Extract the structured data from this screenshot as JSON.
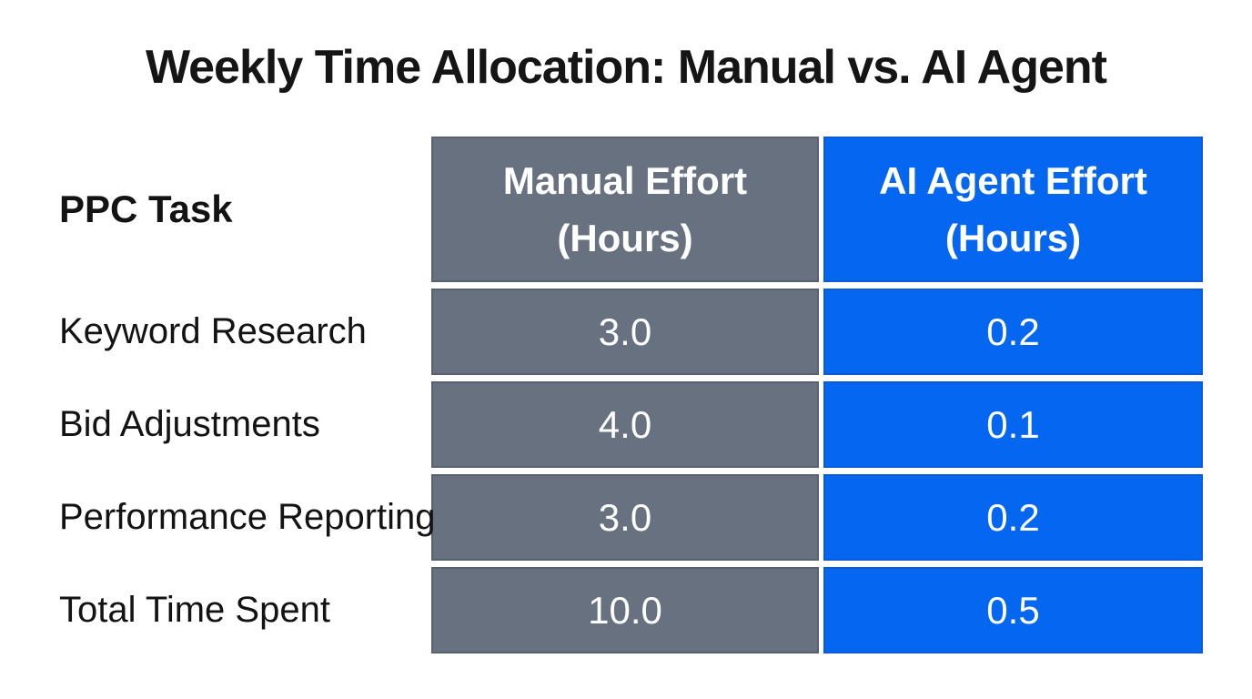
{
  "title": "Weekly Time Allocation: Manual vs. AI Agent",
  "colors": {
    "manual_column": "#68717f",
    "manual_border": "#59616d",
    "ai_column": "#0566f0",
    "ai_border": "#0b5bd6",
    "header_text": "#ffffff",
    "title_text": "#151515"
  },
  "table": {
    "task_header": "PPC Task",
    "columns": [
      {
        "label_line1": "Manual Effort",
        "label_line2": "(Hours)"
      },
      {
        "label_line1": "AI Agent Effort",
        "label_line2": "(Hours)"
      }
    ],
    "rows": [
      {
        "task": "Keyword Research",
        "manual": "3.0",
        "ai": "0.2"
      },
      {
        "task": "Bid Adjustments",
        "manual": "4.0",
        "ai": "0.1"
      },
      {
        "task": "Performance Reporting",
        "manual": "3.0",
        "ai": "0.2"
      },
      {
        "task": "Total Time Spent",
        "manual": "10.0",
        "ai": "0.5"
      }
    ]
  },
  "chart_data": {
    "type": "table",
    "title": "Weekly Time Allocation: Manual vs. AI Agent",
    "columns": [
      "PPC Task",
      "Manual Effort (Hours)",
      "AI Agent Effort (Hours)"
    ],
    "rows": [
      [
        "Keyword Research",
        3.0,
        0.2
      ],
      [
        "Bid Adjustments",
        4.0,
        0.1
      ],
      [
        "Performance Reporting",
        3.0,
        0.2
      ],
      [
        "Total Time Spent",
        10.0,
        0.5
      ]
    ],
    "layout_hints": {
      "manual_column_fill": "#68717f",
      "ai_column_fill": "#0566f0",
      "row_separator": "white gaps",
      "task_column_fill": "none"
    }
  }
}
